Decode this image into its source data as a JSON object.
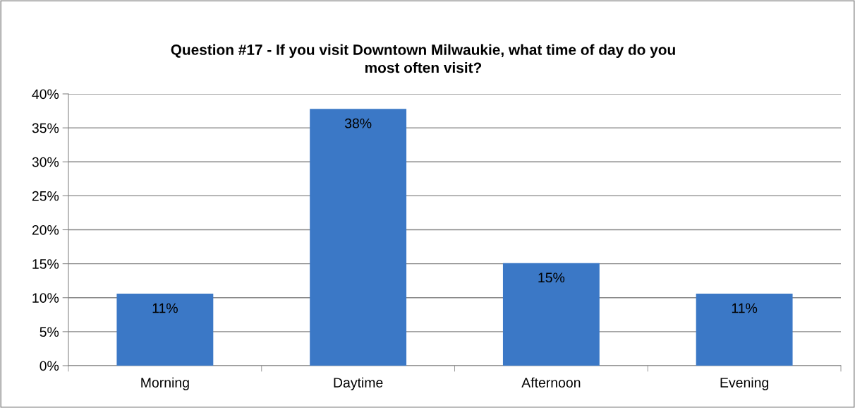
{
  "chart_data": {
    "type": "bar",
    "title": "Question #17 - If you visit Downtown Milwaukie, what time of day do you\nmost often visit?",
    "categories": [
      "Morning",
      "Daytime",
      "Afternoon",
      "Evening"
    ],
    "values": [
      10.6,
      37.8,
      15.1,
      10.6
    ],
    "value_labels": [
      "11%",
      "38%",
      "15%",
      "11%"
    ],
    "color": "#3b78c6",
    "ylim": [
      0,
      40
    ],
    "yticks": [
      {
        "value": 0,
        "label": "0%"
      },
      {
        "value": 5,
        "label": "5%"
      },
      {
        "value": 10,
        "label": "10%"
      },
      {
        "value": 15,
        "label": "15%"
      },
      {
        "value": 20,
        "label": "20%"
      },
      {
        "value": 25,
        "label": "25%"
      },
      {
        "value": 30,
        "label": "30%"
      },
      {
        "value": 35,
        "label": "35%"
      },
      {
        "value": 40,
        "label": "40%"
      }
    ],
    "grid": "y",
    "legend": false
  }
}
